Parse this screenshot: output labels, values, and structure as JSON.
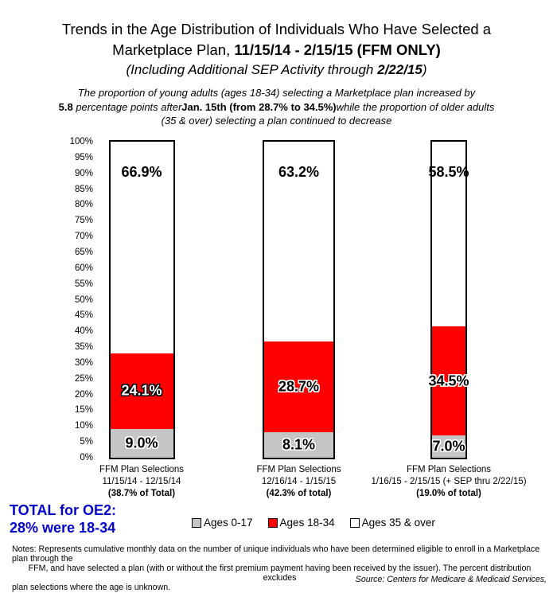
{
  "title": {
    "line1": "Trends in the Age Distribution of Individuals Who Have Selected a",
    "line2_regular": "Marketplace Plan, ",
    "line2_bold": "11/15/14 - 2/15/15 (FFM ONLY)",
    "line3_italic_open": "(Including Additional SEP Activity through ",
    "line3_bold": "2/22/15",
    "line3_close": ")"
  },
  "subtitle": {
    "line1": "The proportion of young adults (ages 18-34) selecting a Marketplace plan increased by",
    "line2_bold_lead": "5.8",
    "line2_italic_a": " percentage points after",
    "line2_bold_mid": "Jan. 15th (from 28.7% to 34.5%)",
    "line2_italic_b": "while the proportion of older adults",
    "line3": "(35 & over) selecting a plan continued to decrease"
  },
  "chart_data": {
    "type": "bar",
    "stacked": true,
    "unit": "%",
    "ylim": [
      0,
      100
    ],
    "ytick_step": 5,
    "grid": false,
    "legend_position": "bottom",
    "bar_width_share_of_total": [
      38.7,
      42.3,
      19.0
    ],
    "categories": [
      {
        "line1": "FFM Plan Selections",
        "line2": "11/15/14 - 12/15/14",
        "line3": "(38.7% of Total)"
      },
      {
        "line1": "FFM Plan Selections",
        "line2": "12/16/14 - 1/15/15",
        "line3": "(42.3% of total)"
      },
      {
        "line1": "FFM Plan Selections",
        "line2": "1/16/15 - 2/15/15 (+ SEP thru 2/22/15)",
        "line3": "(19.0% of total)"
      }
    ],
    "series": [
      {
        "name": "Ages 0-17",
        "color": "#C5C5C5",
        "values": [
          9.0,
          8.1,
          7.0
        ],
        "label_placement": "center",
        "label_styles": [
          "outline-dark",
          "outline-dark",
          "outline-dark"
        ]
      },
      {
        "name": "Ages 18-34",
        "color": "#FF0000",
        "values": [
          24.1,
          28.7,
          34.5
        ],
        "label_placement": "center",
        "label_styles": [
          "outline-light",
          "outline-dark",
          "outline-dark"
        ]
      },
      {
        "name": "Ages 35 & over",
        "color": "#FFFFFF",
        "values": [
          66.9,
          63.2,
          58.5
        ],
        "label_placement": "top",
        "label_styles": [
          "plain-dark",
          "plain-dark",
          "plain-dark"
        ]
      }
    ]
  },
  "legend": {
    "items": [
      {
        "label": "Ages 0-17",
        "color": "#C5C5C5"
      },
      {
        "label": "Ages 18-34",
        "color": "#FF0000"
      },
      {
        "label": "Ages 35 & over",
        "color": "#FFFFFF"
      }
    ]
  },
  "total_note": {
    "line1": "TOTAL for OE2:",
    "line2": "28% were 18-34",
    "color": "#0202CC"
  },
  "notes": {
    "line1": "Notes:  Represents cumulative monthly data on the number of unique individuals who have been determined eligible to enroll in a Marketplace plan through the",
    "line2": "FFM, and have selected a plan (with or without the first premium payment having been received by the issuer).  The percent distribution excludes",
    "line3": "plan selections where the age is unknown."
  },
  "source": "Source:  Centers for Medicare & Medicaid Services,"
}
